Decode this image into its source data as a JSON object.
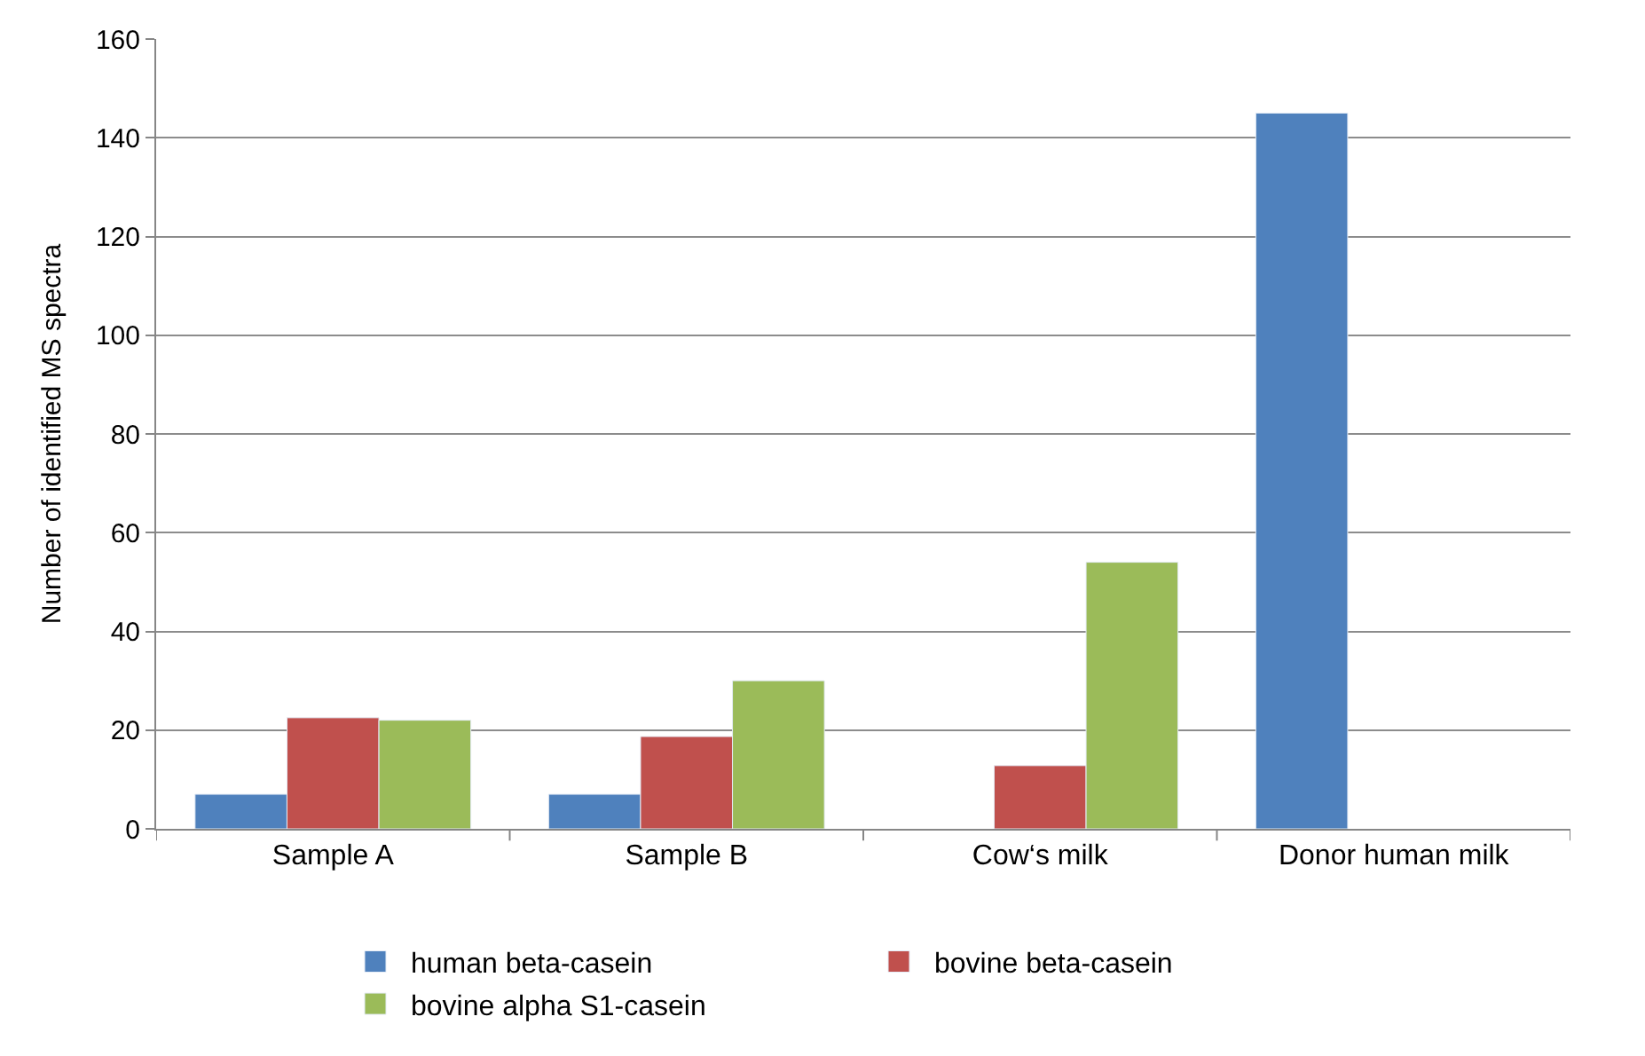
{
  "chart_data": {
    "type": "bar",
    "ylabel": "Number of identified MS spectra",
    "categories": [
      "Sample A",
      "Sample B",
      "Cow‘s milk",
      "Donor human milk"
    ],
    "series": [
      {
        "name": "human beta-casein",
        "color": "#4f81bd",
        "values": [
          7,
          7,
          null,
          145
        ]
      },
      {
        "name": "bovine beta-casein",
        "color": "#c0504d",
        "values": [
          22.5,
          18.7,
          12.8,
          null
        ]
      },
      {
        "name": "bovine alpha S1-casein",
        "color": "#9bbb59",
        "values": [
          22,
          30,
          54,
          null
        ]
      }
    ],
    "ylim": [
      0,
      160
    ],
    "yticks": [
      0,
      20,
      40,
      60,
      80,
      100,
      120,
      140,
      160
    ],
    "grid": "y",
    "legend": "bottom"
  }
}
